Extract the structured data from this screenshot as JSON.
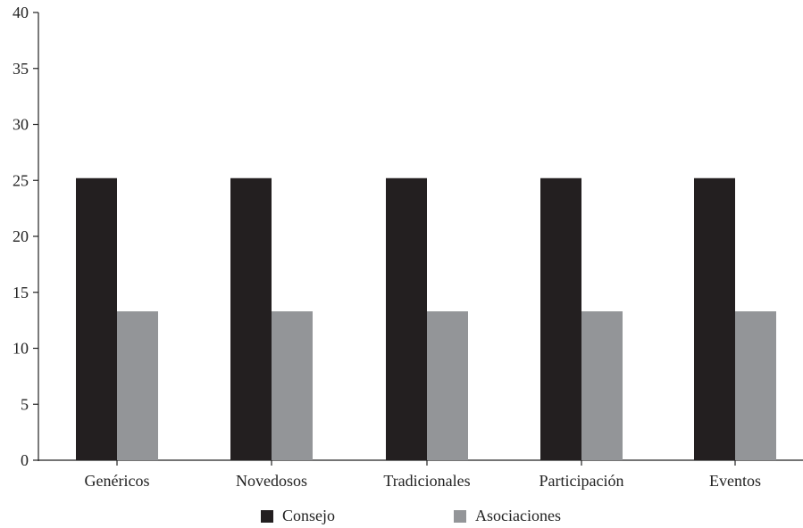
{
  "chart_data": {
    "type": "bar",
    "categories": [
      "Genéricos",
      "Novedosos",
      "Tradicionales",
      "Participación",
      "Eventos"
    ],
    "series": [
      {
        "name": "Consejo",
        "values": [
          25.2,
          25.2,
          25.2,
          25.2,
          25.2
        ],
        "color": "#231f20"
      },
      {
        "name": "Asociaciones",
        "values": [
          13.3,
          13.3,
          13.3,
          13.3,
          13.3
        ],
        "color": "#939598"
      }
    ],
    "ylim": [
      0,
      40
    ],
    "yticks": [
      0,
      5,
      10,
      15,
      20,
      25,
      30,
      35,
      40
    ],
    "title": "",
    "xlabel": "",
    "ylabel": "",
    "grid": false,
    "legend_position": "bottom"
  }
}
